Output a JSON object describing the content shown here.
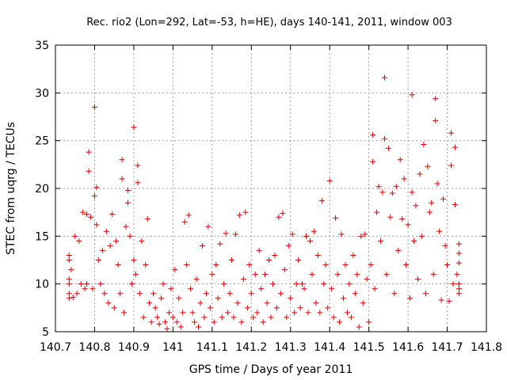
{
  "chart_data": {
    "type": "scatter",
    "title": "Rec. rio2 (Lon=292, Lat=-53, h=HE), days 140-141, 2011, window 003",
    "xlabel": "GPS time / Days of year 2011",
    "ylabel": "STEC from uqrg / TECUs",
    "xlim": [
      140.7,
      141.8
    ],
    "ylim": [
      5,
      35
    ],
    "xticks": [
      140.7,
      140.8,
      140.9,
      141,
      141.1,
      141.2,
      141.3,
      141.4,
      141.5,
      141.6,
      141.7,
      141.8
    ],
    "xtick_labels": [
      "140.7",
      "140.8",
      "140.9",
      "141",
      "141.1",
      "141.2",
      "141.3",
      "141.4",
      "141.5",
      "141.6",
      "141.7",
      "141.8"
    ],
    "yticks": [
      5,
      10,
      15,
      20,
      25,
      30,
      35
    ],
    "ytick_labels": [
      "5",
      "10",
      "15",
      "20",
      "25",
      "30",
      "35"
    ],
    "grid": true,
    "marker": "+",
    "color": "#dd0000",
    "points": [
      [
        140.735,
        13.0
      ],
      [
        140.735,
        12.5
      ],
      [
        140.735,
        10.5
      ],
      [
        140.735,
        10.0
      ],
      [
        140.735,
        9.0
      ],
      [
        140.735,
        8.5
      ],
      [
        140.74,
        11.5
      ],
      [
        140.745,
        8.6
      ],
      [
        140.75,
        15.0
      ],
      [
        140.755,
        9.0
      ],
      [
        140.76,
        14.5
      ],
      [
        140.765,
        10.0
      ],
      [
        140.77,
        17.5
      ],
      [
        140.775,
        9.5
      ],
      [
        140.78,
        17.3
      ],
      [
        140.78,
        10.0
      ],
      [
        140.785,
        23.8
      ],
      [
        140.785,
        21.8
      ],
      [
        140.79,
        17.0
      ],
      [
        140.795,
        9.5
      ],
      [
        140.8,
        28.5
      ],
      [
        140.8,
        19.2
      ],
      [
        140.805,
        20.1
      ],
      [
        140.805,
        16.2
      ],
      [
        140.81,
        12.5
      ],
      [
        140.815,
        10.0
      ],
      [
        140.82,
        13.5
      ],
      [
        140.825,
        9.0
      ],
      [
        140.83,
        15.5
      ],
      [
        140.835,
        8.0
      ],
      [
        140.84,
        14.0
      ],
      [
        140.845,
        17.3
      ],
      [
        140.85,
        7.5
      ],
      [
        140.855,
        14.5
      ],
      [
        140.86,
        12.0
      ],
      [
        140.865,
        9.0
      ],
      [
        140.87,
        23.0
      ],
      [
        140.87,
        21.0
      ],
      [
        140.875,
        7.0
      ],
      [
        140.88,
        16.0
      ],
      [
        140.885,
        19.8
      ],
      [
        140.885,
        18.5
      ],
      [
        140.89,
        15.0
      ],
      [
        140.895,
        10.0
      ],
      [
        140.9,
        26.4
      ],
      [
        140.9,
        12.5
      ],
      [
        140.905,
        11.0
      ],
      [
        140.91,
        22.4
      ],
      [
        140.91,
        20.6
      ],
      [
        140.915,
        9.0
      ],
      [
        140.92,
        14.5
      ],
      [
        140.925,
        6.5
      ],
      [
        140.93,
        12.0
      ],
      [
        140.935,
        16.8
      ],
      [
        140.94,
        8.0
      ],
      [
        140.945,
        6.0
      ],
      [
        140.95,
        9.0
      ],
      [
        140.955,
        7.5
      ],
      [
        140.96,
        6.5
      ],
      [
        140.965,
        5.8
      ],
      [
        140.97,
        8.5
      ],
      [
        140.975,
        10.0
      ],
      [
        140.98,
        6.0
      ],
      [
        140.985,
        5.3
      ],
      [
        140.99,
        7.0
      ],
      [
        140.995,
        9.5
      ],
      [
        141.0,
        6.5
      ],
      [
        141.005,
        11.5
      ],
      [
        141.01,
        6.0
      ],
      [
        141.015,
        8.5
      ],
      [
        141.02,
        5.5
      ],
      [
        141.025,
        7.0
      ],
      [
        141.03,
        16.5
      ],
      [
        141.035,
        12.0
      ],
      [
        141.04,
        17.2
      ],
      [
        141.045,
        9.5
      ],
      [
        141.05,
        7.0
      ],
      [
        141.055,
        6.0
      ],
      [
        141.06,
        10.5
      ],
      [
        141.065,
        5.5
      ],
      [
        141.07,
        8.0
      ],
      [
        141.075,
        14.0
      ],
      [
        141.08,
        6.5
      ],
      [
        141.085,
        9.0
      ],
      [
        141.09,
        16.0
      ],
      [
        141.095,
        7.5
      ],
      [
        141.1,
        11.0
      ],
      [
        141.105,
        6.0
      ],
      [
        141.11,
        12.0
      ],
      [
        141.115,
        8.5
      ],
      [
        141.12,
        14.2
      ],
      [
        141.125,
        6.5
      ],
      [
        141.13,
        10.0
      ],
      [
        141.135,
        15.3
      ],
      [
        141.14,
        7.0
      ],
      [
        141.145,
        9.0
      ],
      [
        141.15,
        12.5
      ],
      [
        141.155,
        6.5
      ],
      [
        141.16,
        15.2
      ],
      [
        141.165,
        8.0
      ],
      [
        141.17,
        17.2
      ],
      [
        141.175,
        6.0
      ],
      [
        141.18,
        10.5
      ],
      [
        141.185,
        17.5
      ],
      [
        141.19,
        7.5
      ],
      [
        141.195,
        12.0
      ],
      [
        141.2,
        9.0
      ],
      [
        141.205,
        6.5
      ],
      [
        141.21,
        11.0
      ],
      [
        141.215,
        7.0
      ],
      [
        141.22,
        13.5
      ],
      [
        141.225,
        9.5
      ],
      [
        141.23,
        6.0
      ],
      [
        141.235,
        11.0
      ],
      [
        141.24,
        8.0
      ],
      [
        141.245,
        12.5
      ],
      [
        141.25,
        6.5
      ],
      [
        141.255,
        10.0
      ],
      [
        141.26,
        13.0
      ],
      [
        141.265,
        7.5
      ],
      [
        141.27,
        17.0
      ],
      [
        141.275,
        9.0
      ],
      [
        141.28,
        17.4
      ],
      [
        141.285,
        11.5
      ],
      [
        141.29,
        6.5
      ],
      [
        141.295,
        14.0
      ],
      [
        141.3,
        8.5
      ],
      [
        141.305,
        15.2
      ],
      [
        141.31,
        7.0
      ],
      [
        141.315,
        10.0
      ],
      [
        141.32,
        12.5
      ],
      [
        141.325,
        7.5
      ],
      [
        141.33,
        10.0
      ],
      [
        141.335,
        9.5
      ],
      [
        141.34,
        15.0
      ],
      [
        141.345,
        7.0
      ],
      [
        141.35,
        14.5
      ],
      [
        141.355,
        11.0
      ],
      [
        141.36,
        15.5
      ],
      [
        141.365,
        8.0
      ],
      [
        141.37,
        13.0
      ],
      [
        141.375,
        7.0
      ],
      [
        141.38,
        18.7
      ],
      [
        141.385,
        10.0
      ],
      [
        141.39,
        12.0
      ],
      [
        141.395,
        7.5
      ],
      [
        141.4,
        20.8
      ],
      [
        141.405,
        9.5
      ],
      [
        141.41,
        6.5
      ],
      [
        141.415,
        16.9
      ],
      [
        141.42,
        11.0
      ],
      [
        141.425,
        6.0
      ],
      [
        141.43,
        15.2
      ],
      [
        141.435,
        8.5
      ],
      [
        141.44,
        12.0
      ],
      [
        141.445,
        7.0
      ],
      [
        141.45,
        10.0
      ],
      [
        141.455,
        6.5
      ],
      [
        141.46,
        13.0
      ],
      [
        141.465,
        9.0
      ],
      [
        141.47,
        11.0
      ],
      [
        141.475,
        5.5
      ],
      [
        141.48,
        15.0
      ],
      [
        141.485,
        8.0
      ],
      [
        141.49,
        15.2
      ],
      [
        141.495,
        10.5
      ],
      [
        141.5,
        6.0
      ],
      [
        141.505,
        12.0
      ],
      [
        141.51,
        25.6
      ],
      [
        141.51,
        22.8
      ],
      [
        141.515,
        9.5
      ],
      [
        141.52,
        17.5
      ],
      [
        141.525,
        20.2
      ],
      [
        141.53,
        14.5
      ],
      [
        141.535,
        19.6
      ],
      [
        141.54,
        31.6
      ],
      [
        141.54,
        25.2
      ],
      [
        141.545,
        11.0
      ],
      [
        141.55,
        24.2
      ],
      [
        141.555,
        17.0
      ],
      [
        141.56,
        19.5
      ],
      [
        141.565,
        9.0
      ],
      [
        141.57,
        20.2
      ],
      [
        141.575,
        13.5
      ],
      [
        141.58,
        23.0
      ],
      [
        141.585,
        16.8
      ],
      [
        141.59,
        21.0
      ],
      [
        141.595,
        12.0
      ],
      [
        141.6,
        16.2
      ],
      [
        141.605,
        8.5
      ],
      [
        141.61,
        29.8
      ],
      [
        141.61,
        19.6
      ],
      [
        141.615,
        14.5
      ],
      [
        141.62,
        18.2
      ],
      [
        141.625,
        10.5
      ],
      [
        141.63,
        21.5
      ],
      [
        141.635,
        15.0
      ],
      [
        141.64,
        24.6
      ],
      [
        141.645,
        9.0
      ],
      [
        141.65,
        22.3
      ],
      [
        141.655,
        17.5
      ],
      [
        141.66,
        18.5
      ],
      [
        141.665,
        11.0
      ],
      [
        141.67,
        29.4
      ],
      [
        141.67,
        27.1
      ],
      [
        141.675,
        20.5
      ],
      [
        141.68,
        15.5
      ],
      [
        141.685,
        8.3
      ],
      [
        141.69,
        18.9
      ],
      [
        141.695,
        14.0
      ],
      [
        141.7,
        12.0
      ],
      [
        141.705,
        8.2
      ],
      [
        141.71,
        25.8
      ],
      [
        141.71,
        22.4
      ],
      [
        141.715,
        10.0
      ],
      [
        141.72,
        24.3
      ],
      [
        141.72,
        18.3
      ],
      [
        141.725,
        11.0
      ],
      [
        141.73,
        14.2
      ],
      [
        141.73,
        13.2
      ],
      [
        141.73,
        12.2
      ],
      [
        141.73,
        10.0
      ],
      [
        141.73,
        9.5
      ],
      [
        141.73,
        9.0
      ]
    ]
  }
}
